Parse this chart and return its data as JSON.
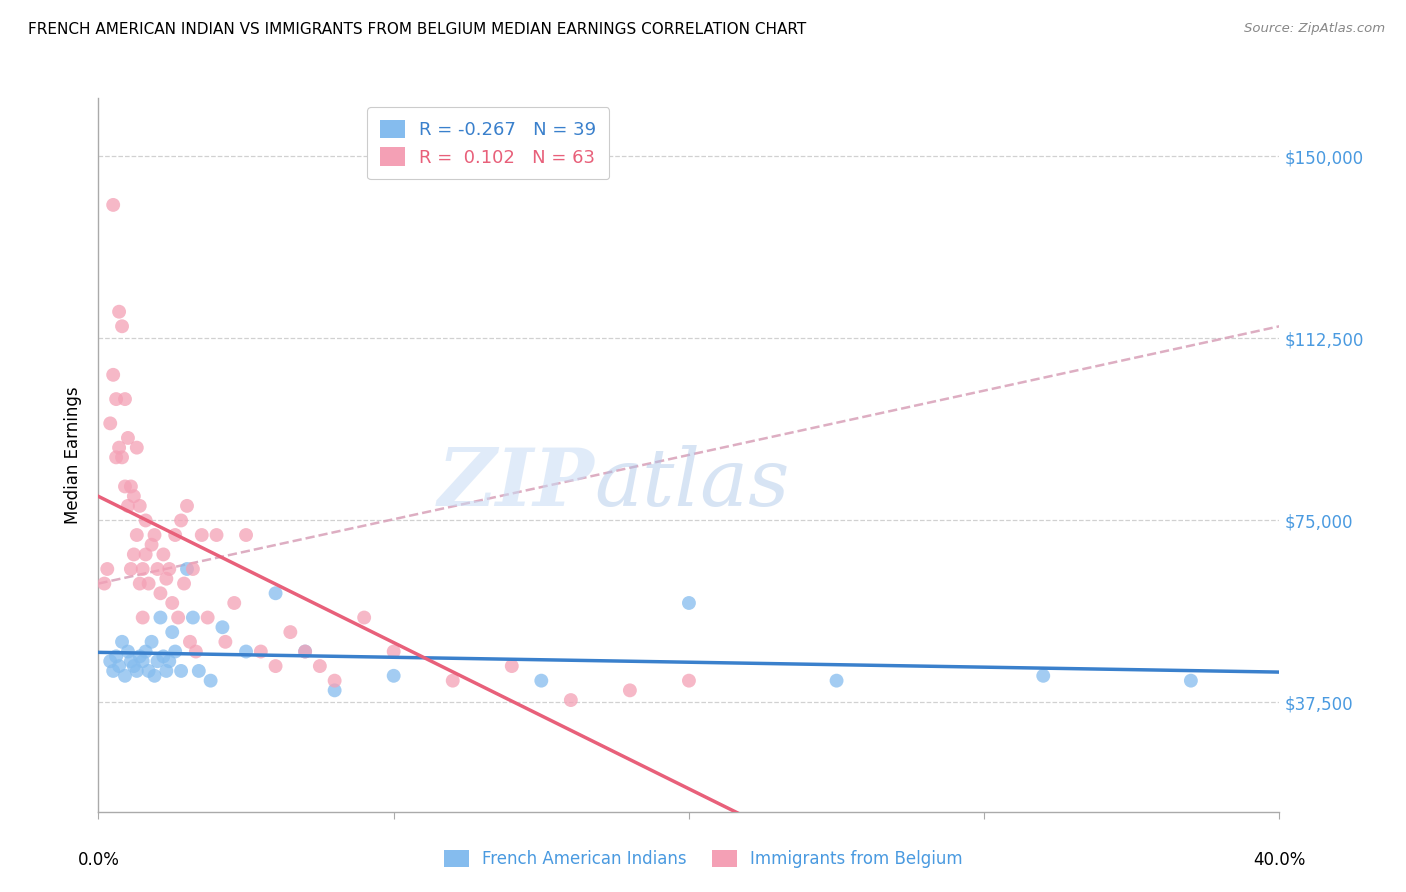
{
  "title": "FRENCH AMERICAN INDIAN VS IMMIGRANTS FROM BELGIUM MEDIAN EARNINGS CORRELATION CHART",
  "source": "Source: ZipAtlas.com",
  "ylabel": "Median Earnings",
  "ytick_labels": [
    "$37,500",
    "$75,000",
    "$112,500",
    "$150,000"
  ],
  "ytick_values": [
    37500,
    75000,
    112500,
    150000
  ],
  "ymin": 15000,
  "ymax": 162000,
  "xmin": 0.0,
  "xmax": 0.4,
  "legend_blue_R": "-0.267",
  "legend_blue_N": "39",
  "legend_pink_R": "0.102",
  "legend_pink_N": "63",
  "blue_color": "#85BCEE",
  "pink_color": "#F4A0B5",
  "blue_line_color": "#3A80CC",
  "pink_line_color": "#E8607A",
  "pink_dash_color": "#D8A0B8",
  "blue_scatter_x": [
    0.004,
    0.005,
    0.006,
    0.007,
    0.008,
    0.009,
    0.01,
    0.011,
    0.012,
    0.013,
    0.014,
    0.015,
    0.016,
    0.017,
    0.018,
    0.019,
    0.02,
    0.021,
    0.022,
    0.023,
    0.024,
    0.025,
    0.026,
    0.028,
    0.03,
    0.032,
    0.034,
    0.038,
    0.042,
    0.05,
    0.06,
    0.07,
    0.08,
    0.1,
    0.15,
    0.2,
    0.25,
    0.32,
    0.37
  ],
  "blue_scatter_y": [
    46000,
    44000,
    47000,
    45000,
    50000,
    43000,
    48000,
    46000,
    45000,
    44000,
    47000,
    46000,
    48000,
    44000,
    50000,
    43000,
    46000,
    55000,
    47000,
    44000,
    46000,
    52000,
    48000,
    44000,
    65000,
    55000,
    44000,
    42000,
    53000,
    48000,
    60000,
    48000,
    40000,
    43000,
    42000,
    58000,
    42000,
    43000,
    42000
  ],
  "pink_scatter_x": [
    0.002,
    0.003,
    0.004,
    0.005,
    0.005,
    0.006,
    0.006,
    0.007,
    0.007,
    0.008,
    0.008,
    0.009,
    0.009,
    0.01,
    0.01,
    0.011,
    0.011,
    0.012,
    0.012,
    0.013,
    0.013,
    0.014,
    0.014,
    0.015,
    0.015,
    0.016,
    0.016,
    0.017,
    0.018,
    0.019,
    0.02,
    0.021,
    0.022,
    0.023,
    0.024,
    0.025,
    0.026,
    0.027,
    0.028,
    0.029,
    0.03,
    0.031,
    0.032,
    0.033,
    0.035,
    0.037,
    0.04,
    0.043,
    0.046,
    0.05,
    0.055,
    0.06,
    0.065,
    0.07,
    0.075,
    0.08,
    0.09,
    0.1,
    0.12,
    0.14,
    0.16,
    0.18,
    0.2
  ],
  "pink_scatter_y": [
    62000,
    65000,
    95000,
    140000,
    105000,
    100000,
    88000,
    90000,
    118000,
    115000,
    88000,
    82000,
    100000,
    78000,
    92000,
    82000,
    65000,
    80000,
    68000,
    72000,
    90000,
    78000,
    62000,
    65000,
    55000,
    68000,
    75000,
    62000,
    70000,
    72000,
    65000,
    60000,
    68000,
    63000,
    65000,
    58000,
    72000,
    55000,
    75000,
    62000,
    78000,
    50000,
    65000,
    48000,
    72000,
    55000,
    72000,
    50000,
    58000,
    72000,
    48000,
    45000,
    52000,
    48000,
    45000,
    42000,
    55000,
    48000,
    42000,
    45000,
    38000,
    40000,
    42000
  ]
}
